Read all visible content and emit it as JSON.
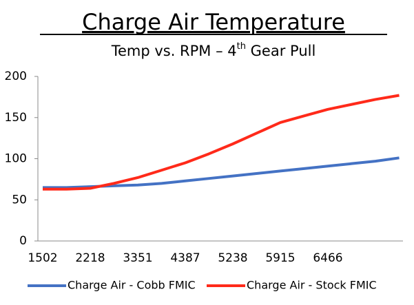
{
  "chart_data": {
    "type": "line",
    "title": "Charge Air Temperature",
    "subtitle": [
      "Temp vs. RPM – 4",
      "th",
      " Gear Pull"
    ],
    "categories": [
      "1502",
      null,
      "2218",
      null,
      "3351",
      null,
      "4387",
      null,
      "5238",
      null,
      "5915",
      null,
      "6466",
      null,
      null,
      null
    ],
    "series": [
      {
        "name": "Charge Air - Cobb FMIC",
        "color": "#4472c4",
        "values": [
          65,
          65,
          66,
          67,
          68,
          70,
          73,
          76,
          79,
          82,
          85,
          88,
          91,
          94,
          97,
          101
        ]
      },
      {
        "name": "Charge Air - Stock FMIC",
        "color": "#ff2a1a",
        "values": [
          63,
          63,
          64,
          70,
          77,
          86,
          95,
          106,
          118,
          131,
          144,
          152,
          160,
          166,
          172,
          177
        ]
      }
    ],
    "ylim": [
      0,
      200
    ],
    "yticks": [
      0,
      50,
      100,
      150,
      200
    ],
    "grid": false,
    "legend": "bottom"
  }
}
